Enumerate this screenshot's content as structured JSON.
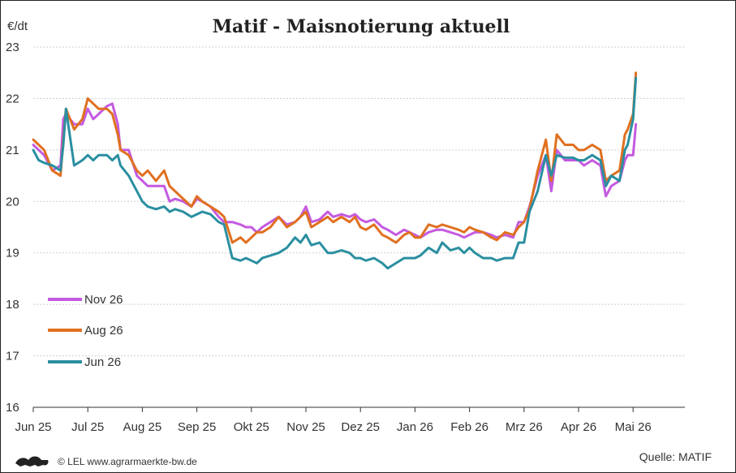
{
  "chart_data": {
    "type": "line",
    "title": "Matif - Maisnotierung aktuell",
    "ylabel": "€/dt",
    "ylim": [
      16,
      23
    ],
    "yticks": [
      "16",
      "17",
      "18",
      "19",
      "20",
      "21",
      "22",
      "23"
    ],
    "xticks": [
      "Jun 25",
      "Jul 25",
      "Aug 25",
      "Sep 25",
      "Okt 25",
      "Nov 25",
      "Dez 25",
      "Jan 26",
      "Feb 26",
      "Mrz 26",
      "Apr 26",
      "Mai 26"
    ],
    "grid": true,
    "legend_position": "bottom-left",
    "source": "Quelle: MATIF",
    "footer": "© LEL www.agrarmaerkte-bw.de",
    "series": [
      {
        "name": "Nov 26",
        "color": "#c45ae0",
        "points": [
          [
            0,
            21.1
          ],
          [
            0.1,
            21.0
          ],
          [
            0.2,
            20.9
          ],
          [
            0.35,
            20.6
          ],
          [
            0.5,
            20.7
          ],
          [
            0.55,
            21.6
          ],
          [
            0.6,
            21.7
          ],
          [
            0.75,
            21.5
          ],
          [
            0.9,
            21.5
          ],
          [
            1.0,
            21.8
          ],
          [
            1.1,
            21.6
          ],
          [
            1.2,
            21.7
          ],
          [
            1.35,
            21.85
          ],
          [
            1.45,
            21.9
          ],
          [
            1.55,
            21.5
          ],
          [
            1.6,
            21.0
          ],
          [
            1.75,
            21.0
          ],
          [
            1.9,
            20.5
          ],
          [
            2.0,
            20.4
          ],
          [
            2.1,
            20.3
          ],
          [
            2.25,
            20.3
          ],
          [
            2.4,
            20.3
          ],
          [
            2.5,
            20.0
          ],
          [
            2.6,
            20.05
          ],
          [
            2.75,
            20.0
          ],
          [
            2.9,
            19.9
          ],
          [
            3.0,
            20.05
          ],
          [
            3.1,
            20.0
          ],
          [
            3.25,
            19.9
          ],
          [
            3.4,
            19.7
          ],
          [
            3.5,
            19.6
          ],
          [
            3.65,
            19.6
          ],
          [
            3.8,
            19.55
          ],
          [
            3.9,
            19.5
          ],
          [
            4.0,
            19.5
          ],
          [
            4.1,
            19.4
          ],
          [
            4.2,
            19.5
          ],
          [
            4.35,
            19.6
          ],
          [
            4.5,
            19.7
          ],
          [
            4.65,
            19.55
          ],
          [
            4.8,
            19.6
          ],
          [
            4.9,
            19.7
          ],
          [
            5.0,
            19.9
          ],
          [
            5.1,
            19.6
          ],
          [
            5.25,
            19.65
          ],
          [
            5.4,
            19.8
          ],
          [
            5.5,
            19.7
          ],
          [
            5.65,
            19.75
          ],
          [
            5.8,
            19.7
          ],
          [
            5.9,
            19.75
          ],
          [
            6.0,
            19.65
          ],
          [
            6.1,
            19.6
          ],
          [
            6.25,
            19.65
          ],
          [
            6.4,
            19.5
          ],
          [
            6.5,
            19.45
          ],
          [
            6.65,
            19.35
          ],
          [
            6.8,
            19.45
          ],
          [
            6.9,
            19.4
          ],
          [
            7.0,
            19.35
          ],
          [
            7.1,
            19.3
          ],
          [
            7.25,
            19.4
          ],
          [
            7.4,
            19.45
          ],
          [
            7.5,
            19.45
          ],
          [
            7.65,
            19.4
          ],
          [
            7.8,
            19.35
          ],
          [
            7.9,
            19.3
          ],
          [
            8.0,
            19.35
          ],
          [
            8.1,
            19.4
          ],
          [
            8.25,
            19.4
          ],
          [
            8.4,
            19.35
          ],
          [
            8.5,
            19.3
          ],
          [
            8.65,
            19.35
          ],
          [
            8.8,
            19.3
          ],
          [
            8.9,
            19.6
          ],
          [
            9.0,
            19.6
          ],
          [
            9.1,
            19.9
          ],
          [
            9.25,
            20.5
          ],
          [
            9.4,
            20.9
          ],
          [
            9.5,
            20.2
          ],
          [
            9.6,
            21.0
          ],
          [
            9.75,
            20.8
          ],
          [
            9.9,
            20.8
          ],
          [
            10.0,
            20.8
          ],
          [
            10.1,
            20.7
          ],
          [
            10.25,
            20.8
          ],
          [
            10.4,
            20.7
          ],
          [
            10.5,
            20.1
          ],
          [
            10.6,
            20.3
          ],
          [
            10.75,
            20.4
          ],
          [
            10.85,
            20.8
          ],
          [
            10.9,
            20.9
          ],
          [
            11.0,
            20.9
          ],
          [
            11.05,
            21.5
          ]
        ]
      },
      {
        "name": "Aug 26",
        "color": "#e07020",
        "points": [
          [
            0,
            21.2
          ],
          [
            0.1,
            21.1
          ],
          [
            0.2,
            21.0
          ],
          [
            0.35,
            20.6
          ],
          [
            0.5,
            20.5
          ],
          [
            0.55,
            21.2
          ],
          [
            0.6,
            21.8
          ],
          [
            0.75,
            21.4
          ],
          [
            0.9,
            21.6
          ],
          [
            1.0,
            22.0
          ],
          [
            1.1,
            21.9
          ],
          [
            1.2,
            21.8
          ],
          [
            1.35,
            21.8
          ],
          [
            1.45,
            21.7
          ],
          [
            1.55,
            21.3
          ],
          [
            1.6,
            21.0
          ],
          [
            1.75,
            20.9
          ],
          [
            1.9,
            20.6
          ],
          [
            2.0,
            20.5
          ],
          [
            2.1,
            20.6
          ],
          [
            2.25,
            20.4
          ],
          [
            2.4,
            20.6
          ],
          [
            2.5,
            20.3
          ],
          [
            2.6,
            20.2
          ],
          [
            2.75,
            20.05
          ],
          [
            2.9,
            19.9
          ],
          [
            3.0,
            20.1
          ],
          [
            3.1,
            20.0
          ],
          [
            3.25,
            19.9
          ],
          [
            3.4,
            19.8
          ],
          [
            3.5,
            19.7
          ],
          [
            3.65,
            19.2
          ],
          [
            3.8,
            19.3
          ],
          [
            3.9,
            19.2
          ],
          [
            4.0,
            19.3
          ],
          [
            4.1,
            19.4
          ],
          [
            4.2,
            19.4
          ],
          [
            4.35,
            19.5
          ],
          [
            4.5,
            19.7
          ],
          [
            4.65,
            19.5
          ],
          [
            4.8,
            19.6
          ],
          [
            4.9,
            19.7
          ],
          [
            5.0,
            19.8
          ],
          [
            5.1,
            19.5
          ],
          [
            5.25,
            19.6
          ],
          [
            5.4,
            19.7
          ],
          [
            5.5,
            19.6
          ],
          [
            5.65,
            19.7
          ],
          [
            5.8,
            19.6
          ],
          [
            5.9,
            19.7
          ],
          [
            6.0,
            19.5
          ],
          [
            6.1,
            19.45
          ],
          [
            6.25,
            19.55
          ],
          [
            6.4,
            19.35
          ],
          [
            6.5,
            19.3
          ],
          [
            6.65,
            19.2
          ],
          [
            6.8,
            19.35
          ],
          [
            6.9,
            19.4
          ],
          [
            7.0,
            19.3
          ],
          [
            7.1,
            19.3
          ],
          [
            7.25,
            19.55
          ],
          [
            7.4,
            19.5
          ],
          [
            7.5,
            19.55
          ],
          [
            7.65,
            19.5
          ],
          [
            7.8,
            19.45
          ],
          [
            7.9,
            19.4
          ],
          [
            8.0,
            19.5
          ],
          [
            8.1,
            19.45
          ],
          [
            8.25,
            19.4
          ],
          [
            8.4,
            19.3
          ],
          [
            8.5,
            19.25
          ],
          [
            8.65,
            19.4
          ],
          [
            8.8,
            19.35
          ],
          [
            8.9,
            19.5
          ],
          [
            9.0,
            19.6
          ],
          [
            9.1,
            19.85
          ],
          [
            9.25,
            20.6
          ],
          [
            9.4,
            21.2
          ],
          [
            9.5,
            20.4
          ],
          [
            9.6,
            21.3
          ],
          [
            9.75,
            21.1
          ],
          [
            9.9,
            21.1
          ],
          [
            10.0,
            21.0
          ],
          [
            10.1,
            21.0
          ],
          [
            10.25,
            21.1
          ],
          [
            10.4,
            21.0
          ],
          [
            10.5,
            20.4
          ],
          [
            10.6,
            20.5
          ],
          [
            10.75,
            20.6
          ],
          [
            10.85,
            21.3
          ],
          [
            10.9,
            21.4
          ],
          [
            11.0,
            21.7
          ],
          [
            11.05,
            22.5
          ]
        ]
      },
      {
        "name": "Jun 26",
        "color": "#2a8fa0",
        "points": [
          [
            0,
            21.0
          ],
          [
            0.1,
            20.8
          ],
          [
            0.2,
            20.75
          ],
          [
            0.35,
            20.7
          ],
          [
            0.5,
            20.6
          ],
          [
            0.55,
            21.1
          ],
          [
            0.6,
            21.8
          ],
          [
            0.75,
            20.7
          ],
          [
            0.9,
            20.8
          ],
          [
            1.0,
            20.9
          ],
          [
            1.1,
            20.8
          ],
          [
            1.2,
            20.9
          ],
          [
            1.35,
            20.9
          ],
          [
            1.45,
            20.8
          ],
          [
            1.55,
            20.9
          ],
          [
            1.6,
            20.7
          ],
          [
            1.75,
            20.5
          ],
          [
            1.9,
            20.2
          ],
          [
            2.0,
            20.0
          ],
          [
            2.1,
            19.9
          ],
          [
            2.25,
            19.85
          ],
          [
            2.4,
            19.9
          ],
          [
            2.5,
            19.8
          ],
          [
            2.6,
            19.85
          ],
          [
            2.75,
            19.8
          ],
          [
            2.9,
            19.7
          ],
          [
            3.0,
            19.75
          ],
          [
            3.1,
            19.8
          ],
          [
            3.25,
            19.75
          ],
          [
            3.4,
            19.6
          ],
          [
            3.5,
            19.55
          ],
          [
            3.65,
            18.9
          ],
          [
            3.8,
            18.85
          ],
          [
            3.9,
            18.9
          ],
          [
            4.0,
            18.85
          ],
          [
            4.1,
            18.8
          ],
          [
            4.2,
            18.9
          ],
          [
            4.35,
            18.95
          ],
          [
            4.5,
            19.0
          ],
          [
            4.65,
            19.1
          ],
          [
            4.8,
            19.3
          ],
          [
            4.9,
            19.2
          ],
          [
            5.0,
            19.35
          ],
          [
            5.1,
            19.15
          ],
          [
            5.25,
            19.2
          ],
          [
            5.4,
            19.0
          ],
          [
            5.5,
            19.0
          ],
          [
            5.65,
            19.05
          ],
          [
            5.8,
            19.0
          ],
          [
            5.9,
            18.9
          ],
          [
            6.0,
            18.9
          ],
          [
            6.1,
            18.85
          ],
          [
            6.25,
            18.9
          ],
          [
            6.4,
            18.8
          ],
          [
            6.5,
            18.7
          ],
          [
            6.65,
            18.8
          ],
          [
            6.8,
            18.9
          ],
          [
            6.9,
            18.9
          ],
          [
            7.0,
            18.9
          ],
          [
            7.1,
            18.95
          ],
          [
            7.25,
            19.1
          ],
          [
            7.4,
            19.0
          ],
          [
            7.5,
            19.2
          ],
          [
            7.65,
            19.05
          ],
          [
            7.8,
            19.1
          ],
          [
            7.9,
            19.0
          ],
          [
            8.0,
            19.1
          ],
          [
            8.1,
            19.0
          ],
          [
            8.25,
            18.9
          ],
          [
            8.4,
            18.9
          ],
          [
            8.5,
            18.85
          ],
          [
            8.65,
            18.9
          ],
          [
            8.8,
            18.9
          ],
          [
            8.9,
            19.2
          ],
          [
            9.0,
            19.2
          ],
          [
            9.1,
            19.8
          ],
          [
            9.25,
            20.2
          ],
          [
            9.4,
            20.9
          ],
          [
            9.5,
            20.5
          ],
          [
            9.6,
            20.9
          ],
          [
            9.75,
            20.85
          ],
          [
            9.9,
            20.85
          ],
          [
            10.0,
            20.8
          ],
          [
            10.1,
            20.8
          ],
          [
            10.25,
            20.9
          ],
          [
            10.4,
            20.8
          ],
          [
            10.5,
            20.3
          ],
          [
            10.6,
            20.5
          ],
          [
            10.75,
            20.4
          ],
          [
            10.85,
            21.0
          ],
          [
            10.9,
            21.1
          ],
          [
            11.0,
            21.6
          ],
          [
            11.05,
            22.4
          ]
        ]
      }
    ]
  }
}
